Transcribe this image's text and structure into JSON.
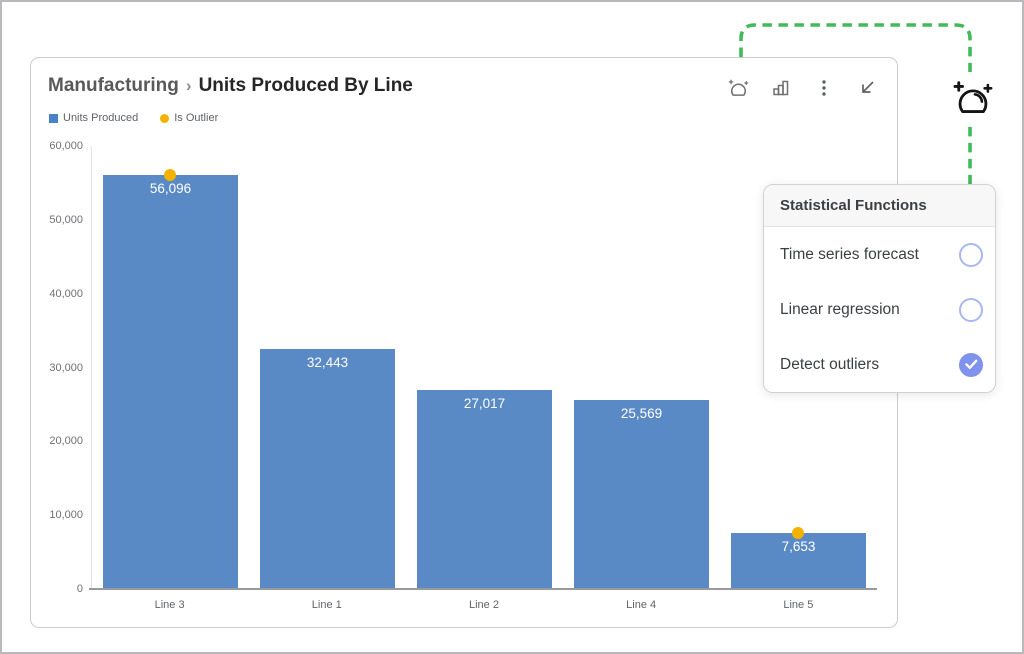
{
  "card": {
    "breadcrumb": {
      "section": "Manufacturing",
      "separator": "›",
      "title": "Units Produced By Line"
    },
    "toolbar": {
      "icons": [
        "ai-insights",
        "chart-type",
        "more-options",
        "collapse"
      ]
    },
    "legend": [
      {
        "label": "Units Produced",
        "swatch": "square",
        "color": "#4a82c6"
      },
      {
        "label": "Is Outlier",
        "swatch": "circle",
        "color": "#f3b200"
      }
    ]
  },
  "chart_data": {
    "type": "bar",
    "title": "Units Produced By Line",
    "categories": [
      "Line 3",
      "Line 1",
      "Line 2",
      "Line 4",
      "Line 5"
    ],
    "values": [
      56096,
      32443,
      27017,
      25569,
      7653
    ],
    "value_labels": [
      "56,096",
      "32,443",
      "27,017",
      "25,569",
      "7,653"
    ],
    "outliers": [
      true,
      false,
      false,
      false,
      true
    ],
    "xlabel": "",
    "ylabel": "",
    "ylim": [
      0,
      60000
    ],
    "yticks": [
      0,
      10000,
      20000,
      30000,
      40000,
      50000,
      60000
    ],
    "ytick_labels": [
      "0",
      "10,000",
      "20,000",
      "30,000",
      "40,000",
      "50,000",
      "60,000"
    ],
    "grid": false,
    "legend_position": "top-left",
    "bar_color": "#5a8ac6",
    "outlier_color": "#f3b200"
  },
  "popup": {
    "title": "Statistical Functions",
    "options": [
      {
        "label": "Time series forecast",
        "checked": false
      },
      {
        "label": "Linear regression",
        "checked": false
      },
      {
        "label": "Detect outliers",
        "checked": true
      }
    ],
    "accent": "#7e92ee",
    "radio_border": "#a9b7f3"
  },
  "connector": {
    "color": "#43ba58"
  }
}
